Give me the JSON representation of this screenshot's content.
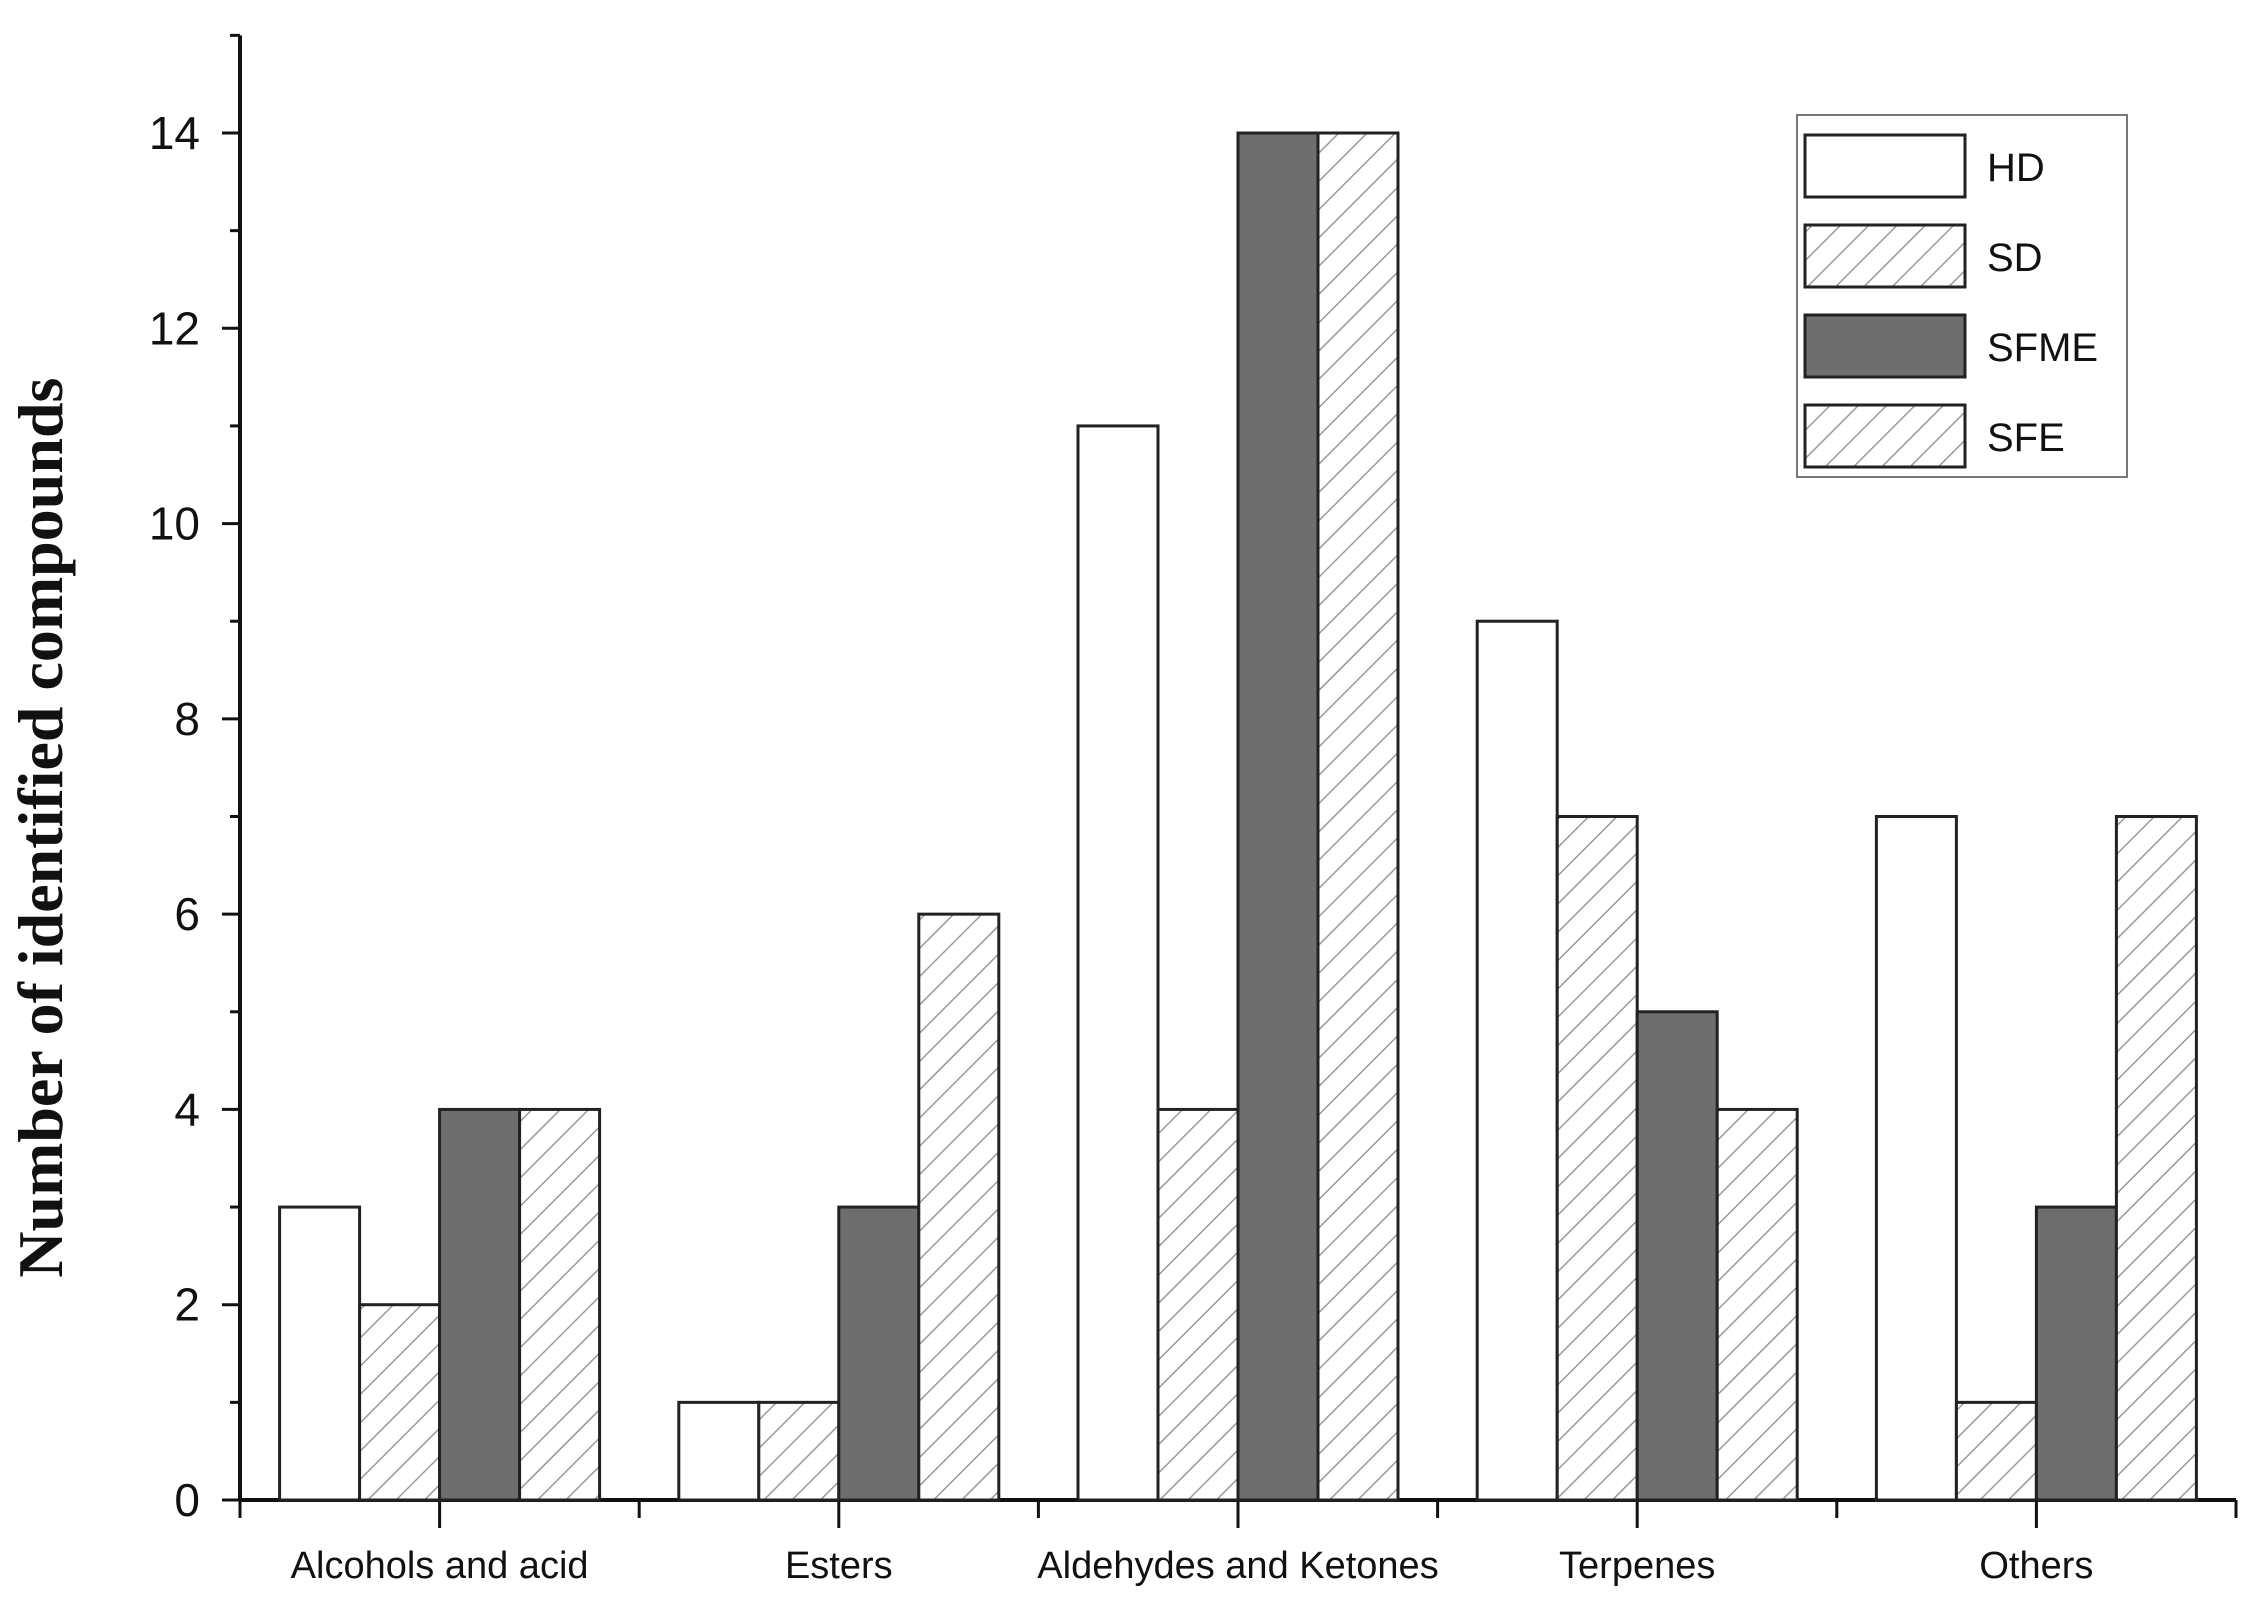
{
  "chart_data": {
    "type": "bar",
    "title": "",
    "xlabel": "",
    "ylabel": "Number of identified compounds",
    "ylim": [
      0,
      15
    ],
    "yticks": [
      0,
      2,
      4,
      6,
      8,
      10,
      12,
      14
    ],
    "categories": [
      "Alcohols and acid",
      "Esters",
      "Aldehydes and Ketones",
      "Terpenes",
      "Others"
    ],
    "series": [
      {
        "name": "HD",
        "values": [
          3,
          1,
          11,
          9,
          7
        ],
        "fill": "#ffffff",
        "pattern": "none"
      },
      {
        "name": "SD",
        "values": [
          2,
          1,
          4,
          7,
          1
        ],
        "fill": "#ffffff",
        "pattern": "hatch"
      },
      {
        "name": "SFME",
        "values": [
          4,
          3,
          14,
          5,
          3
        ],
        "fill": "#6e6e6e",
        "pattern": "none"
      },
      {
        "name": "SFE",
        "values": [
          4,
          6,
          14,
          4,
          7
        ],
        "fill": "#ffffff",
        "pattern": "hatch"
      }
    ],
    "grid": false,
    "legend": "top-right"
  }
}
